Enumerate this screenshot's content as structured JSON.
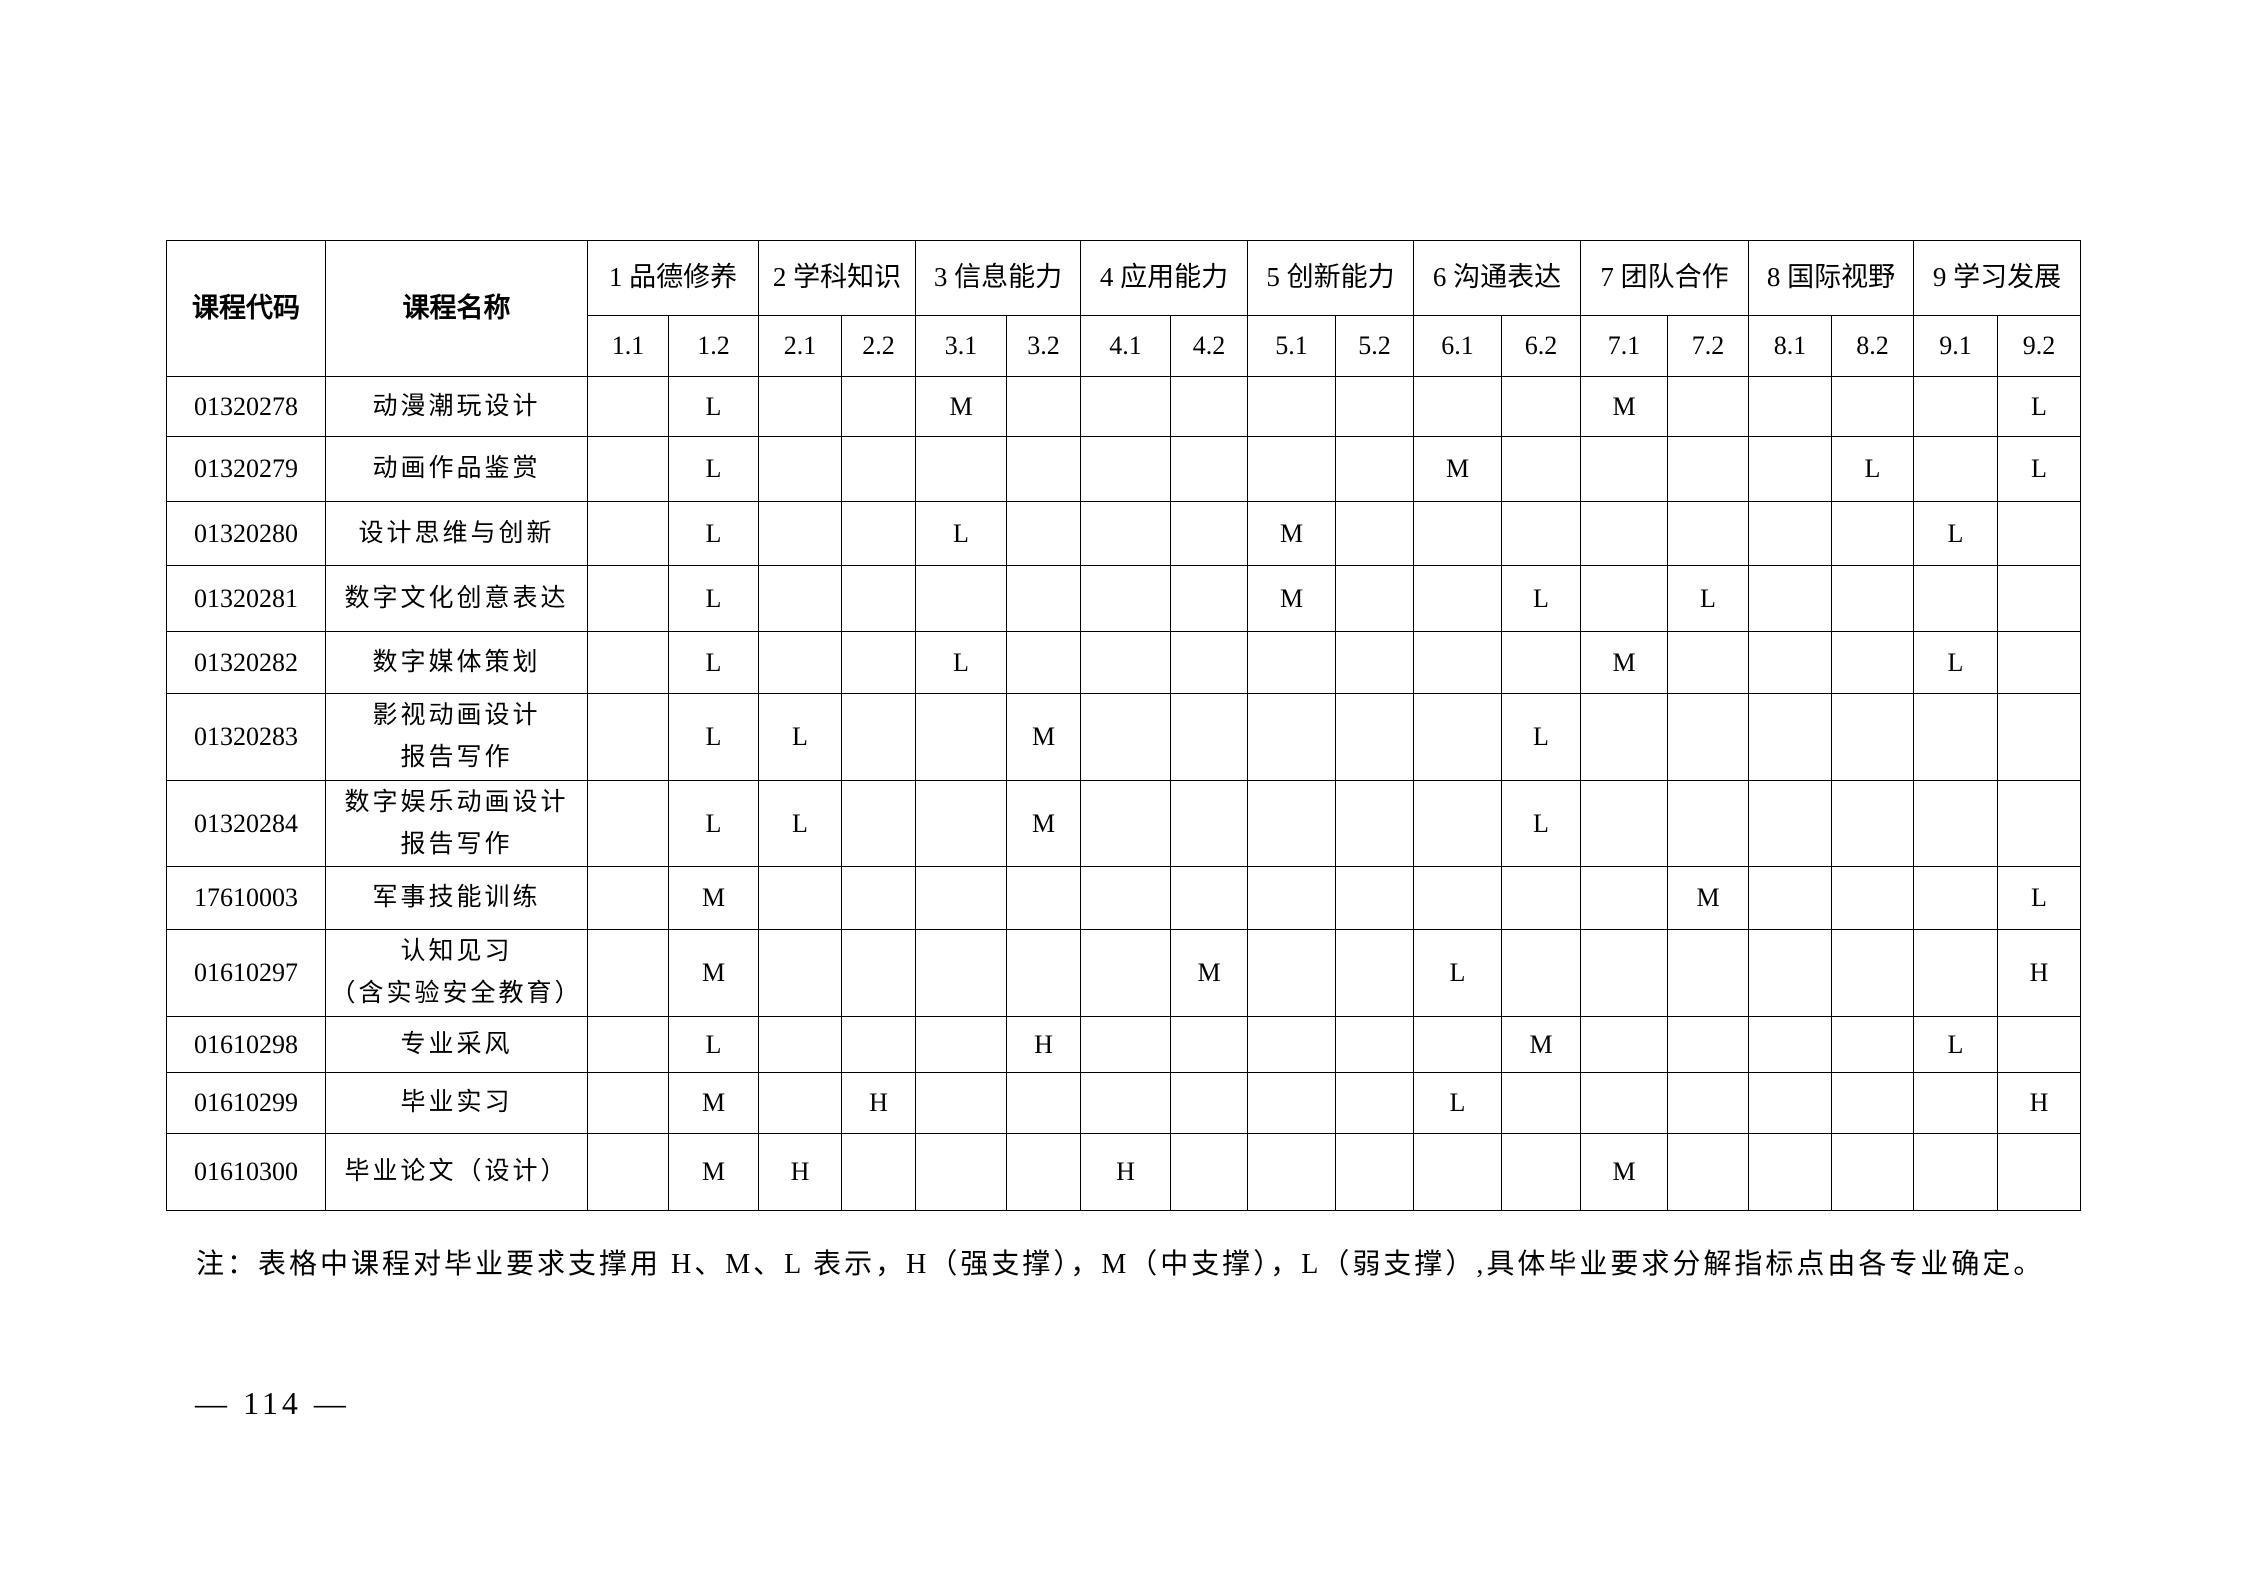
{
  "table": {
    "header": {
      "code": "课程代码",
      "name": "课程名称",
      "groups": [
        "1 品德修养",
        "2 学科知识",
        "3 信息能力",
        "4 应用能力",
        "5 创新能力",
        "6 沟通表达",
        "7 团队合作",
        "8 国际视野",
        "9 学习发展"
      ],
      "indicators": [
        "1.1",
        "1.2",
        "2.1",
        "2.2",
        "3.1",
        "3.2",
        "4.1",
        "4.2",
        "5.1",
        "5.2",
        "6.1",
        "6.2",
        "7.1",
        "7.2",
        "8.1",
        "8.2",
        "9.1",
        "9.2"
      ]
    },
    "rows": [
      {
        "code": "01320278",
        "name": [
          "动漫潮玩设计"
        ],
        "cells": [
          "",
          "L",
          "",
          "",
          "M",
          "",
          "",
          "",
          "",
          "",
          "",
          "",
          "M",
          "",
          "",
          "",
          "",
          "L"
        ]
      },
      {
        "code": "01320279",
        "name": [
          "动画作品鉴赏"
        ],
        "cells": [
          "",
          "L",
          "",
          "",
          "",
          "",
          "",
          "",
          "",
          "",
          "M",
          "",
          "",
          "",
          "",
          "L",
          "",
          "L"
        ]
      },
      {
        "code": "01320280",
        "name": [
          "设计思维与创新"
        ],
        "cells": [
          "",
          "L",
          "",
          "",
          "L",
          "",
          "",
          "",
          "M",
          "",
          "",
          "",
          "",
          "",
          "",
          "",
          "L",
          ""
        ]
      },
      {
        "code": "01320281",
        "name": [
          "数字文化创意表达"
        ],
        "cells": [
          "",
          "L",
          "",
          "",
          "",
          "",
          "",
          "",
          "M",
          "",
          "",
          "L",
          "",
          "L",
          "",
          "",
          "",
          ""
        ]
      },
      {
        "code": "01320282",
        "name": [
          "数字媒体策划"
        ],
        "cells": [
          "",
          "L",
          "",
          "",
          "L",
          "",
          "",
          "",
          "",
          "",
          "",
          "",
          "M",
          "",
          "",
          "",
          "L",
          ""
        ]
      },
      {
        "code": "01320283",
        "name": [
          "影视动画设计",
          "报告写作"
        ],
        "cells": [
          "",
          "L",
          "L",
          "",
          "",
          "M",
          "",
          "",
          "",
          "",
          "",
          "L",
          "",
          "",
          "",
          "",
          "",
          ""
        ]
      },
      {
        "code": "01320284",
        "name": [
          "数字娱乐动画设计",
          "报告写作"
        ],
        "cells": [
          "",
          "L",
          "L",
          "",
          "",
          "M",
          "",
          "",
          "",
          "",
          "",
          "L",
          "",
          "",
          "",
          "",
          "",
          ""
        ]
      },
      {
        "code": "17610003",
        "name": [
          "军事技能训练"
        ],
        "cells": [
          "",
          "M",
          "",
          "",
          "",
          "",
          "",
          "",
          "",
          "",
          "",
          "",
          "",
          "M",
          "",
          "",
          "",
          "L"
        ]
      },
      {
        "code": "01610297",
        "name": [
          "认知见习",
          "（含实验安全教育）"
        ],
        "cells": [
          "",
          "M",
          "",
          "",
          "",
          "",
          "",
          "M",
          "",
          "",
          "L",
          "",
          "",
          "",
          "",
          "",
          "",
          "H"
        ]
      },
      {
        "code": "01610298",
        "name": [
          "专业采风"
        ],
        "cells": [
          "",
          "L",
          "",
          "",
          "",
          "H",
          "",
          "",
          "",
          "",
          "",
          "M",
          "",
          "",
          "",
          "",
          "L",
          ""
        ]
      },
      {
        "code": "01610299",
        "name": [
          "毕业实习"
        ],
        "cells": [
          "",
          "M",
          "",
          "H",
          "",
          "",
          "",
          "",
          "",
          "",
          "L",
          "",
          "",
          "",
          "",
          "",
          "",
          "H"
        ]
      },
      {
        "code": "01610300",
        "name": [
          "毕业论文（设计）"
        ],
        "cells": [
          "",
          "M",
          "H",
          "",
          "",
          "",
          "H",
          "",
          "",
          "",
          "",
          "",
          "M",
          "",
          "",
          "",
          "",
          ""
        ]
      }
    ]
  },
  "note": "注：表格中课程对毕业要求支撑用 H、M、L 表示，H（强支撑），M（中支撑），L（弱支撑）,具体毕业要求分解指标点由各专业确定。",
  "page_number": "— 114 —"
}
